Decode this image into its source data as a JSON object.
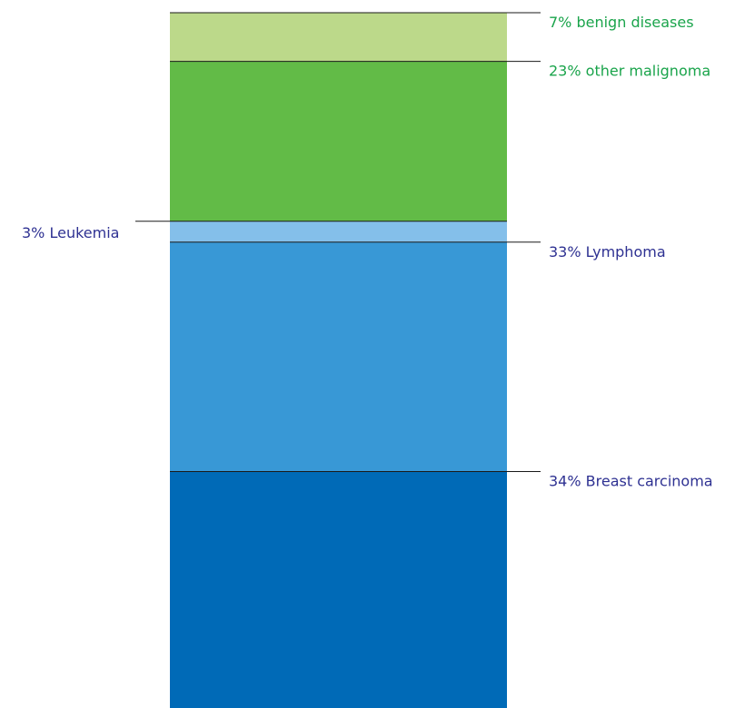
{
  "chart_data": {
    "type": "bar",
    "stacked": true,
    "categories": [
      ""
    ],
    "unit": "%",
    "title": "",
    "xlabel": "",
    "ylabel": "",
    "ylim": [
      0,
      100
    ],
    "grid": false,
    "legend": "none",
    "series": [
      {
        "value": 34,
        "label": "34% Breast carcinoma",
        "color": "#006ab7",
        "label_color": "#2e3192",
        "label_side": "right"
      },
      {
        "value": 33,
        "label": "33% Lymphoma",
        "color": "#3898d6",
        "label_color": "#2e3192",
        "label_side": "right"
      },
      {
        "value": 3,
        "label": "3% Leukemia",
        "color": "#84bfea",
        "label_color": "#2e3192",
        "label_side": "left"
      },
      {
        "value": 23,
        "label": "23% other malignoma",
        "color": "#62bb47",
        "label_color": "#1aa44b",
        "label_side": "right"
      },
      {
        "value": 7,
        "label": "7% benign diseases",
        "color": "#bcd98a",
        "label_color": "#1aa44b",
        "label_side": "right"
      }
    ]
  }
}
